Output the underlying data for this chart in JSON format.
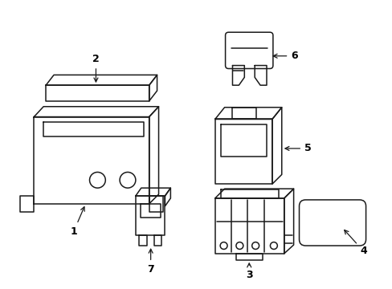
{
  "background_color": "#ffffff",
  "line_color": "#1a1a1a",
  "label_color": "#000000",
  "figsize": [
    4.89,
    3.6
  ],
  "dpi": 100
}
